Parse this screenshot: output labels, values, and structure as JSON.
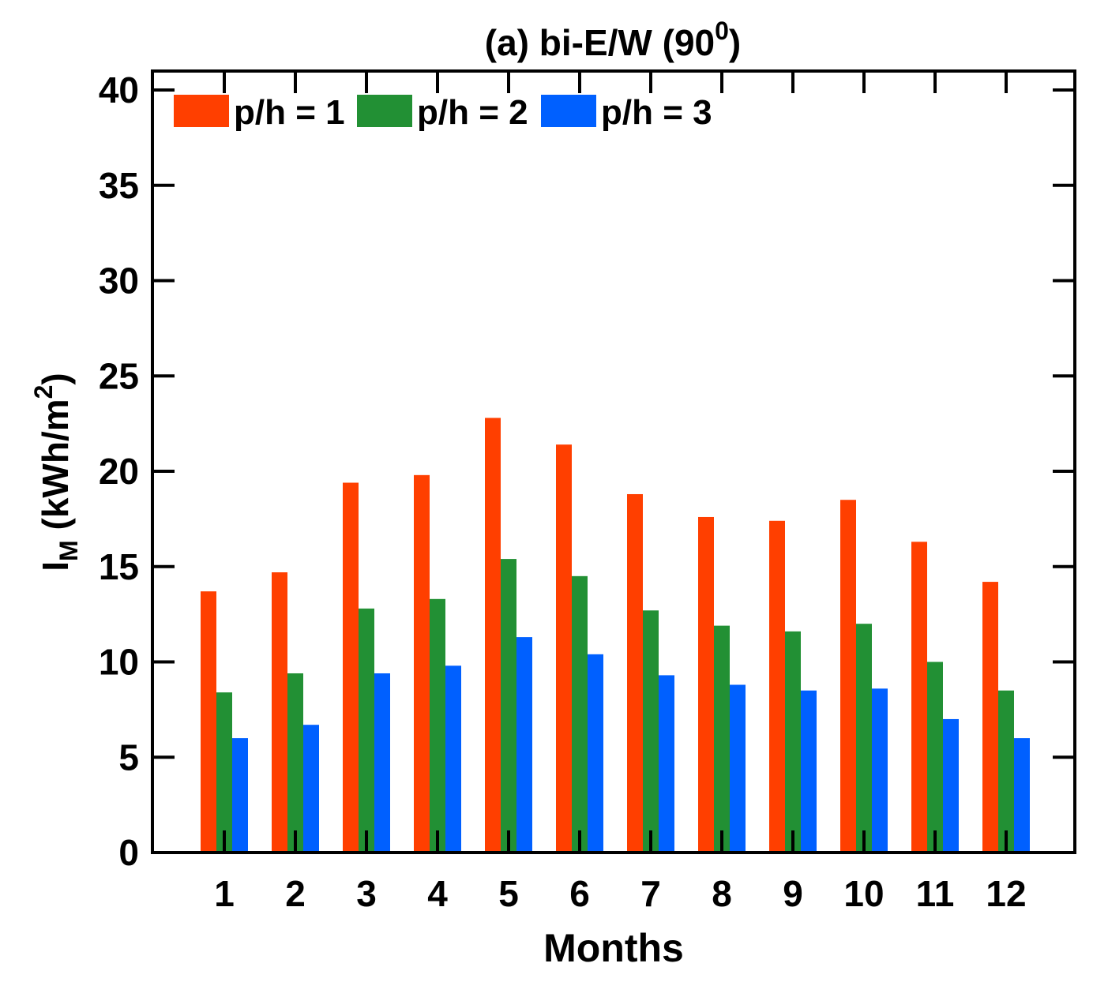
{
  "chart_data": {
    "type": "bar",
    "title": "(a) bi-E/W (90",
    "title_superscript": "0",
    "title_close": ")",
    "xlabel": "Months",
    "ylabel_main": "I",
    "ylabel_sub": "M",
    "ylabel_unit": " (kWh/m",
    "ylabel_unit_sup": "2",
    "ylabel_unit_close": ")",
    "ylim": [
      0,
      40
    ],
    "yticks": [
      0,
      5,
      10,
      15,
      20,
      25,
      30,
      35,
      40
    ],
    "categories": [
      "1",
      "2",
      "3",
      "4",
      "5",
      "6",
      "7",
      "8",
      "9",
      "10",
      "11",
      "12"
    ],
    "legend_position": "top-left",
    "series": [
      {
        "name": "p/h = 1",
        "color": "#ff3f00",
        "values": [
          13.7,
          14.7,
          19.4,
          19.8,
          22.8,
          21.4,
          18.8,
          17.6,
          17.4,
          18.5,
          16.3,
          14.2
        ]
      },
      {
        "name": "p/h = 2",
        "color": "#229034",
        "values": [
          8.4,
          9.4,
          12.8,
          13.3,
          15.4,
          14.5,
          12.7,
          11.9,
          11.6,
          12.0,
          10.0,
          8.5
        ]
      },
      {
        "name": "p/h = 3",
        "color": "#0060ff",
        "values": [
          6.0,
          6.7,
          9.4,
          9.8,
          11.3,
          10.4,
          9.3,
          8.8,
          8.5,
          8.6,
          7.0,
          6.0
        ]
      }
    ]
  }
}
